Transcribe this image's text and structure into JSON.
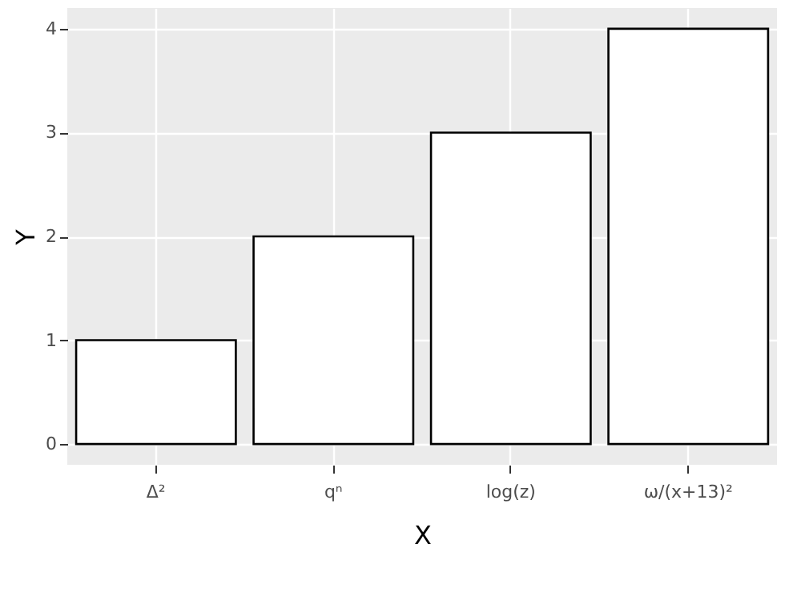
{
  "chart_data": {
    "type": "bar",
    "xlabel": "X",
    "ylabel": "Y",
    "categories": [
      "Δ²",
      "qⁿ",
      "log(z)",
      "ω/(x+13)²"
    ],
    "values": [
      1,
      2,
      3,
      4
    ],
    "color": "#ffffff",
    "ylim": [
      -0.2,
      4.2
    ],
    "yticks": [
      0,
      1,
      2,
      3,
      4
    ],
    "grid": true
  }
}
